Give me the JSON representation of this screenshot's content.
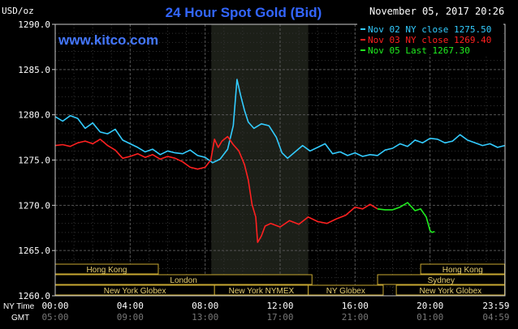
{
  "chart_data": {
    "type": "line",
    "title": "24 Hour Spot Gold (Bid)",
    "date_label": "November 05, 2017 20:26",
    "unit_label": "USD/oz",
    "website": "www.kitco.com",
    "ylim": [
      1260,
      1290
    ],
    "yticks": [
      "1290.0",
      "1285.0",
      "1280.0",
      "1275.0",
      "1270.0",
      "1265.0",
      "1260.0"
    ],
    "ny_time_label": "NY Time",
    "gmt_label": "GMT",
    "ny_ticks": [
      "00:00",
      "04:00",
      "08:00",
      "12:00",
      "16:00",
      "20:00",
      "23:59"
    ],
    "gmt_ticks": [
      "05:00",
      "09:00",
      "13:00",
      "17:00",
      "21:00",
      "01:00",
      "04:59"
    ],
    "legend": [
      {
        "label": "Nov 02 NY close 1275.50",
        "color": "#33ccff"
      },
      {
        "label": "Nov 03 NY close 1269.40",
        "color": "#ff2020"
      },
      {
        "label": "Nov 05 Last 1267.30",
        "color": "#20ee20"
      }
    ],
    "sessions": [
      {
        "label": "Hong Kong",
        "row": 0,
        "start": 0,
        "end": 5.5
      },
      {
        "label": "Hong Kong",
        "row": 0,
        "start": 19.5,
        "end": 23.98
      },
      {
        "label": "London",
        "row": 1,
        "start": 0,
        "end": 13.7
      },
      {
        "label": "Sydney",
        "row": 1,
        "start": 17.2,
        "end": 23.98
      },
      {
        "label": "New York Globex",
        "row": 2,
        "start": 0,
        "end": 8.5
      },
      {
        "label": "New York NYMEX",
        "row": 2,
        "start": 8.5,
        "end": 13.5
      },
      {
        "label": "NY Globex",
        "row": 2,
        "start": 13.5,
        "end": 17.5
      },
      {
        "label": "New York Globex",
        "row": 2,
        "start": 18.2,
        "end": 23.98
      }
    ],
    "shaded_range": [
      8.33,
      13.5
    ],
    "series": [
      {
        "name": "Nov 02 NY close 1275.50",
        "color": "#33ccff",
        "x": [
          0,
          0.4,
          0.8,
          1.2,
          1.6,
          2.0,
          2.4,
          2.8,
          3.2,
          3.6,
          4.0,
          4.4,
          4.8,
          5.2,
          5.6,
          6.0,
          6.4,
          6.8,
          7.2,
          7.6,
          8.0,
          8.4,
          8.8,
          9.2,
          9.5,
          9.7,
          9.9,
          10.1,
          10.3,
          10.6,
          11.0,
          11.4,
          11.8,
          12.1,
          12.4,
          12.8,
          13.2,
          13.6,
          14.0,
          14.4,
          14.8,
          15.2,
          15.6,
          16.0,
          16.4,
          16.8,
          17.2,
          17.6,
          18.0,
          18.4,
          18.8,
          19.2,
          19.6,
          20.0,
          20.4,
          20.8,
          21.2,
          21.6,
          22.0,
          22.4,
          22.8,
          23.2,
          23.6,
          23.98
        ],
        "y": [
          1279.8,
          1279.3,
          1279.9,
          1279.6,
          1278.5,
          1279.1,
          1278.1,
          1277.9,
          1278.4,
          1277.2,
          1276.8,
          1276.4,
          1275.9,
          1276.2,
          1275.6,
          1276.0,
          1275.8,
          1275.7,
          1276.1,
          1275.5,
          1275.3,
          1274.7,
          1275.1,
          1276.2,
          1278.8,
          1283.9,
          1282.1,
          1280.5,
          1279.2,
          1278.5,
          1279.0,
          1278.8,
          1277.5,
          1275.8,
          1275.2,
          1275.9,
          1276.6,
          1276.0,
          1276.4,
          1276.8,
          1275.7,
          1275.9,
          1275.5,
          1275.8,
          1275.4,
          1275.6,
          1275.5,
          1276.1,
          1276.3,
          1276.8,
          1276.5,
          1277.2,
          1276.9,
          1277.4,
          1277.3,
          1276.9,
          1277.1,
          1277.8,
          1277.2,
          1276.9,
          1276.6,
          1276.8,
          1276.4,
          1276.6
        ]
      },
      {
        "name": "Nov 03 NY close 1269.40",
        "color": "#ff2020",
        "x": [
          0,
          0.4,
          0.8,
          1.2,
          1.6,
          2.0,
          2.4,
          2.8,
          3.2,
          3.6,
          4.0,
          4.4,
          4.8,
          5.2,
          5.6,
          6.0,
          6.4,
          6.8,
          7.2,
          7.6,
          8.0,
          8.3,
          8.5,
          8.7,
          8.9,
          9.2,
          9.5,
          9.8,
          10.1,
          10.3,
          10.5,
          10.7,
          10.8,
          11.0,
          11.2,
          11.5,
          12.0,
          12.5,
          13.0,
          13.5,
          14.0,
          14.5,
          15.0,
          15.5,
          16.0,
          16.4,
          16.8,
          17.2
        ],
        "y": [
          1276.6,
          1276.7,
          1276.5,
          1276.9,
          1277.1,
          1276.8,
          1277.3,
          1276.6,
          1276.1,
          1275.2,
          1275.4,
          1275.7,
          1275.3,
          1275.6,
          1275.1,
          1275.4,
          1275.2,
          1274.8,
          1274.2,
          1274.0,
          1274.2,
          1275.0,
          1277.3,
          1276.4,
          1277.1,
          1277.6,
          1276.7,
          1276.0,
          1274.5,
          1272.8,
          1270.1,
          1268.7,
          1265.9,
          1266.6,
          1267.7,
          1268.0,
          1267.6,
          1268.3,
          1267.9,
          1268.7,
          1268.2,
          1268.0,
          1268.5,
          1268.9,
          1269.8,
          1269.6,
          1270.1,
          1269.6
        ]
      },
      {
        "name": "Nov 05 Last 1267.30",
        "color": "#20ee20",
        "x": [
          17.2,
          17.6,
          18.0,
          18.4,
          18.8,
          19.2,
          19.5,
          19.8,
          20.0,
          20.1,
          20.25
        ],
        "y": [
          1269.6,
          1269.5,
          1269.5,
          1269.8,
          1270.3,
          1269.4,
          1269.6,
          1268.7,
          1267.2,
          1267.0,
          1267.1
        ]
      }
    ]
  }
}
